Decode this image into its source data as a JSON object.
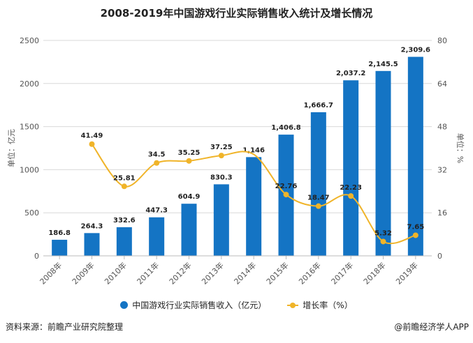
{
  "title": "2008-2019年中国游戏行业实际销售收入统计及增长情况",
  "chart_data": {
    "type": "bar+line",
    "title": "2008-2019年中国游戏行业实际销售收入统计及增长情况",
    "categories": [
      "2008年",
      "2009年",
      "2010年",
      "2011年",
      "2012年",
      "2013年",
      "2014年",
      "2015年",
      "2016年",
      "2017年",
      "2018年",
      "2019年"
    ],
    "series": [
      {
        "name": "中国游戏行业实际销售收入（亿元）",
        "type": "bar",
        "axis": "left",
        "color": "#1474c4",
        "values": [
          186.8,
          264.3,
          332.6,
          447.3,
          604.9,
          830.3,
          1146,
          1406.8,
          1666.7,
          2037.2,
          2145.5,
          2309.6
        ],
        "labels": [
          "186.8",
          "264.3",
          "332.6",
          "447.3",
          "604.9",
          "830.3",
          "1,146",
          "1,406.8",
          "1,666.7",
          "2,037.2",
          "2,145.5",
          "2,309.6"
        ]
      },
      {
        "name": "增长率（%）",
        "type": "line",
        "axis": "right",
        "color": "#f0b429",
        "values": [
          null,
          41.49,
          25.81,
          34.5,
          35.25,
          37.25,
          37.7,
          22.76,
          18.47,
          22.23,
          5.32,
          7.65
        ],
        "labels": [
          null,
          "41.49",
          "25.81",
          "34.5",
          "35.25",
          "37.25",
          null,
          "22.76",
          "18.47",
          "22.23",
          "5.32",
          "7.65"
        ]
      }
    ],
    "ylabel": "单位：亿元",
    "y2label": "单位：%",
    "ylim": [
      0,
      2500
    ],
    "yticks": [
      0,
      500,
      1000,
      1500,
      2000,
      2500
    ],
    "y2lim": [
      0,
      80
    ],
    "y2ticks": [
      0,
      16,
      32,
      48,
      64,
      80
    ],
    "grid": true,
    "legend": "bottom"
  },
  "legend": {
    "bar": "中国游戏行业实际销售收入（亿元）",
    "line": "增长率（%）"
  },
  "footer": {
    "source": "资料来源：前瞻产业研究院整理",
    "brand": "@前瞻经济学人APP"
  }
}
